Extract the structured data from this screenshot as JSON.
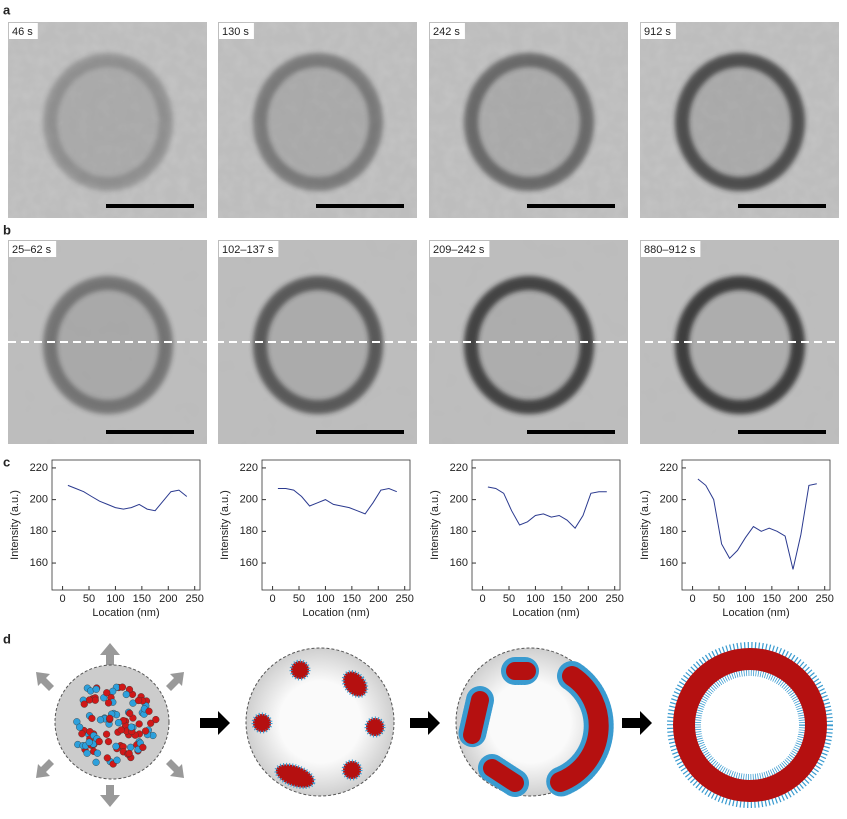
{
  "panel_labels": [
    "a",
    "b",
    "c",
    "d"
  ],
  "panel_a": {
    "times": [
      "46 s",
      "130 s",
      "242 s",
      "912 s"
    ]
  },
  "panel_b": {
    "times": [
      "25–62 s",
      "102–137 s",
      "209–242 s",
      "880–912 s"
    ]
  },
  "chart_data": [
    {
      "type": "line",
      "color": "#2b3a8f",
      "xlabel": "Location (nm)",
      "ylabel": "Intensity (a.u.)",
      "x": [
        10,
        25,
        40,
        55,
        70,
        85,
        100,
        115,
        130,
        145,
        160,
        175,
        190,
        205,
        220,
        235
      ],
      "values": [
        209,
        207,
        205,
        202,
        199,
        197,
        195,
        194,
        195,
        197,
        194,
        193,
        199,
        205,
        206,
        202
      ],
      "xlim": [
        -20,
        260
      ],
      "ylim": [
        143,
        225
      ],
      "xticks": [
        0,
        50,
        100,
        150,
        200,
        250
      ],
      "yticks": [
        160,
        180,
        200,
        220
      ]
    },
    {
      "type": "line",
      "color": "#2b3a8f",
      "xlabel": "Location (nm)",
      "ylabel": "Intensity (a.u.)",
      "x": [
        10,
        25,
        40,
        55,
        70,
        85,
        100,
        115,
        130,
        145,
        160,
        175,
        190,
        205,
        220,
        235
      ],
      "values": [
        207,
        207,
        206,
        202,
        196,
        198,
        200,
        197,
        196,
        195,
        193,
        191,
        198,
        206,
        207,
        205
      ],
      "xlim": [
        -20,
        260
      ],
      "ylim": [
        143,
        225
      ],
      "xticks": [
        0,
        50,
        100,
        150,
        200,
        250
      ],
      "yticks": [
        160,
        180,
        200,
        220
      ]
    },
    {
      "type": "line",
      "color": "#2b3a8f",
      "xlabel": "Location (nm)",
      "ylabel": "Intensity (a.u.)",
      "x": [
        10,
        25,
        40,
        55,
        70,
        85,
        100,
        115,
        130,
        145,
        160,
        175,
        190,
        205,
        220,
        235
      ],
      "values": [
        208,
        207,
        204,
        193,
        184,
        186,
        190,
        191,
        189,
        190,
        187,
        182,
        190,
        204,
        205,
        205
      ],
      "xlim": [
        -20,
        260
      ],
      "ylim": [
        143,
        225
      ],
      "xticks": [
        0,
        50,
        100,
        150,
        200,
        250
      ],
      "yticks": [
        160,
        180,
        200,
        220
      ]
    },
    {
      "type": "line",
      "color": "#2b3a8f",
      "xlabel": "Location (nm)",
      "ylabel": "Intensity (a.u.)",
      "x": [
        10,
        25,
        40,
        55,
        70,
        85,
        100,
        115,
        130,
        145,
        160,
        175,
        190,
        205,
        220,
        235
      ],
      "values": [
        213,
        209,
        200,
        172,
        163,
        168,
        176,
        183,
        180,
        182,
        180,
        177,
        156,
        178,
        209,
        210
      ],
      "xlim": [
        -20,
        260
      ],
      "ylim": [
        143,
        225
      ],
      "xticks": [
        0,
        50,
        100,
        150,
        200,
        250
      ],
      "yticks": [
        160,
        180,
        200,
        220
      ]
    }
  ]
}
